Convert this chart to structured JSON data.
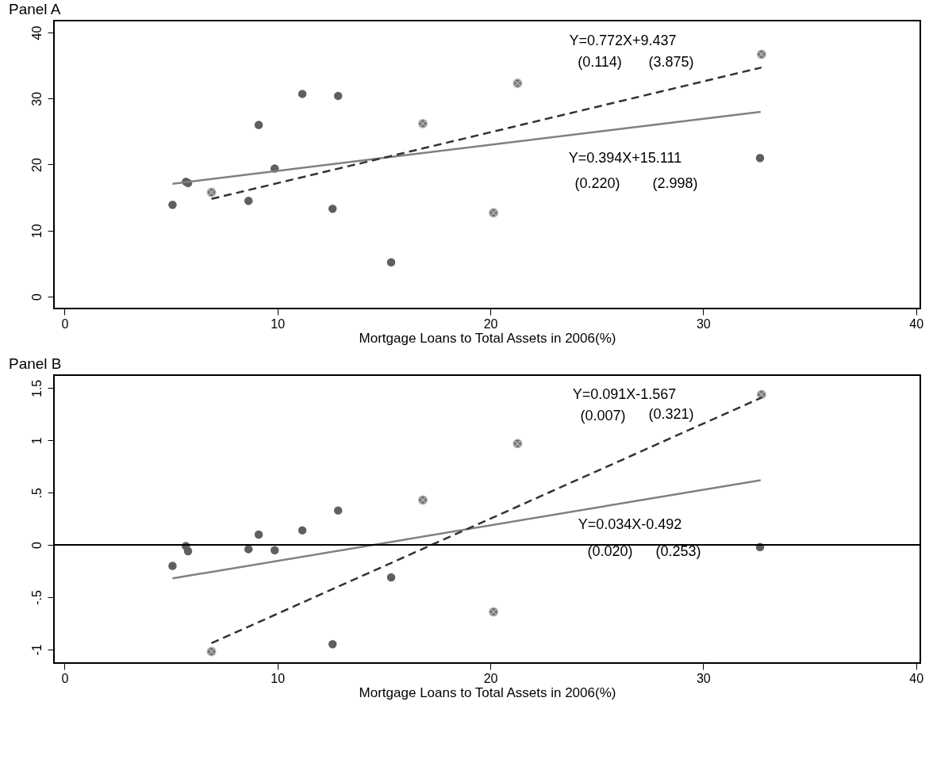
{
  "chart_data": [
    {
      "type": "scatter",
      "title": "Panel A",
      "xlabel": "Mortgage Loans to Total Assets in 2006(%)",
      "xlim": [
        -0.5,
        40.2
      ],
      "xticks": [
        0,
        10,
        20,
        30,
        40
      ],
      "ylim": [
        -1.8,
        41.8
      ],
      "yticks": [
        0,
        10,
        20,
        30,
        40
      ],
      "grid": false,
      "series": [
        {
          "marker": "circle",
          "color": "#5f5f5f",
          "x": [
            5.07,
            5.7,
            5.8,
            8.64,
            9.12,
            9.87,
            11.17,
            12.59,
            12.85,
            15.34,
            32.67
          ],
          "values": [
            13.9,
            17.4,
            17.2,
            14.5,
            26.0,
            19.4,
            30.7,
            13.3,
            30.4,
            5.2,
            21.0
          ]
        },
        {
          "marker": "cross",
          "color": "#6e6e6e",
          "x": [
            6.9,
            16.83,
            20.15,
            21.28,
            32.74
          ],
          "values": [
            15.8,
            26.2,
            12.7,
            32.3,
            36.7
          ]
        },
        {
          "type": "line",
          "line_style": "solid",
          "color": "#808080",
          "x": [
            5.07,
            32.7
          ],
          "values": [
            17.1,
            28.0
          ]
        },
        {
          "type": "line",
          "line_style": "dashed",
          "color": "#333333",
          "x": [
            6.9,
            32.74
          ],
          "values": [
            14.8,
            34.7
          ]
        }
      ],
      "annotations": [
        "Y=0.772X+9.437",
        "(0.114)",
        "(3.875)",
        "Y=0.394X+15.111",
        "(0.220)",
        "(2.998)"
      ]
    },
    {
      "type": "scatter",
      "title": "Panel B",
      "xlabel": "Mortgage Loans to Total Assets in 2006(%)",
      "xlim": [
        -0.5,
        40.2
      ],
      "xticks": [
        0,
        10,
        20,
        30,
        40
      ],
      "ylim": [
        -1.13,
        1.625
      ],
      "yticks": [
        -1,
        {
          "value": -0.5,
          "label": "-.5"
        },
        0,
        {
          "value": 0.5,
          "label": ".5"
        },
        1,
        1.5
      ],
      "grid": false,
      "ref_lines": [
        {
          "axis": "y",
          "value": 0,
          "color": "#000000"
        }
      ],
      "series": [
        {
          "marker": "circle",
          "color": "#5f5f5f",
          "x": [
            5.07,
            5.7,
            5.8,
            8.64,
            9.12,
            9.87,
            11.17,
            12.59,
            12.85,
            15.34,
            32.67
          ],
          "values": [
            -0.2,
            -0.01,
            -0.06,
            -0.04,
            0.1,
            -0.05,
            0.14,
            -0.95,
            0.33,
            -0.31,
            -0.02
          ]
        },
        {
          "marker": "cross",
          "color": "#6e6e6e",
          "x": [
            6.9,
            16.83,
            20.15,
            21.28,
            32.74
          ],
          "values": [
            -1.02,
            0.43,
            -0.64,
            0.97,
            1.44
          ]
        },
        {
          "type": "line",
          "line_style": "solid",
          "color": "#808080",
          "x": [
            5.07,
            32.7
          ],
          "values": [
            -0.32,
            0.62
          ]
        },
        {
          "type": "line",
          "line_style": "dashed",
          "color": "#333333",
          "x": [
            6.9,
            32.74
          ],
          "values": [
            -0.94,
            1.41
          ]
        }
      ],
      "annotations": [
        "Y=0.091X-1.567",
        "(0.007)",
        "(0.321)",
        "Y=0.034X-0.492",
        "(0.020)",
        "(0.253)"
      ]
    }
  ]
}
